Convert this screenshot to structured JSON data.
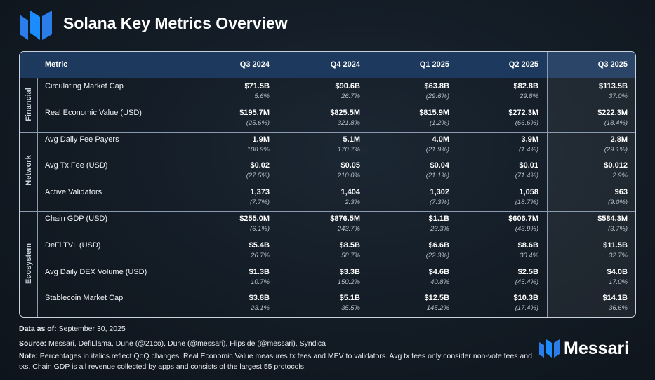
{
  "header": {
    "title": "Solana Key Metrics Overview"
  },
  "table": {
    "columns": [
      "Metric",
      "Q3 2024",
      "Q4 2024",
      "Q1 2025",
      "Q2 2025",
      "Q3 2025"
    ],
    "groups": [
      {
        "name": "Financial",
        "rows": [
          {
            "metric": "Circulating Market Cap",
            "values": [
              "$71.5B",
              "$90.6B",
              "$63.8B",
              "$82.8B",
              "$113.5B"
            ],
            "changes": [
              "5.6%",
              "26.7%",
              "(29.6%)",
              "29.8%",
              "37.0%"
            ]
          },
          {
            "metric": "Real Economic Value (USD)",
            "values": [
              "$195.7M",
              "$825.5M",
              "$815.9M",
              "$272.3M",
              "$222.3M"
            ],
            "changes": [
              "(25.6%)",
              "321.8%",
              "(1.2%)",
              "(66.6%)",
              "(18.4%)"
            ]
          }
        ]
      },
      {
        "name": "Network",
        "rows": [
          {
            "metric": "Avg Daily Fee Payers",
            "values": [
              "1.9M",
              "5.1M",
              "4.0M",
              "3.9M",
              "2.8M"
            ],
            "changes": [
              "108.9%",
              "170.7%",
              "(21.9%)",
              "(1.4%)",
              "(29.1%)"
            ]
          },
          {
            "metric": "Avg Tx Fee (USD)",
            "values": [
              "$0.02",
              "$0.05",
              "$0.04",
              "$0.01",
              "$0.012"
            ],
            "changes": [
              "(27.5%)",
              "210.0%",
              "(21.1%)",
              "(71.4%)",
              "2.9%"
            ]
          },
          {
            "metric": "Active Validators",
            "values": [
              "1,373",
              "1,404",
              "1,302",
              "1,058",
              "963"
            ],
            "changes": [
              "(7.7%)",
              "2.3%",
              "(7.3%)",
              "(18.7%)",
              "(9.0%)"
            ]
          }
        ]
      },
      {
        "name": "Ecosystem",
        "rows": [
          {
            "metric": "Chain GDP (USD)",
            "values": [
              "$255.0M",
              "$876.5M",
              "$1.1B",
              "$606.7M",
              "$584.3M"
            ],
            "changes": [
              "(6.1%)",
              "243.7%",
              "23.3%",
              "(43.9%)",
              "(3.7%)"
            ]
          },
          {
            "metric": "DeFi TVL (USD)",
            "values": [
              "$5.4B",
              "$8.5B",
              "$6.6B",
              "$8.6B",
              "$11.5B"
            ],
            "changes": [
              "26.7%",
              "58.7%",
              "(22.3%)",
              "30.4%",
              "32.7%"
            ]
          },
          {
            "metric": "Avg Daily DEX Volume (USD)",
            "values": [
              "$1.3B",
              "$3.3B",
              "$4.6B",
              "$2.5B",
              "$4.0B"
            ],
            "changes": [
              "10.7%",
              "150.2%",
              "40.8%",
              "(45.4%)",
              "17.0%"
            ]
          },
          {
            "metric": "Stablecoin Market Cap",
            "values": [
              "$3.8B",
              "$5.1B",
              "$12.5B",
              "$10.3B",
              "$14.1B"
            ],
            "changes": [
              "23.1%",
              "35.5%",
              "145.2%",
              "(17.4%)",
              "36.6%"
            ]
          }
        ]
      }
    ]
  },
  "footer": {
    "data_as_of": {
      "label": "Data as of:",
      "text": "September 30, 2025"
    },
    "source": {
      "label": "Source:",
      "text": "Messari, DefiLlama, Dune (@21co), Dune (@messari), Flipside (@messari), Syndica"
    },
    "note": {
      "label": "Note:",
      "text": "Percentages in italics reflect QoQ changes. Real Economic Value measures tx fees and MEV to validators. Avg tx fees only consider non-vote fees and txs. Chain GDP is all revenue collected by apps and consists of the largest 55 protocols."
    }
  },
  "logo": {
    "text": "Messari"
  }
}
